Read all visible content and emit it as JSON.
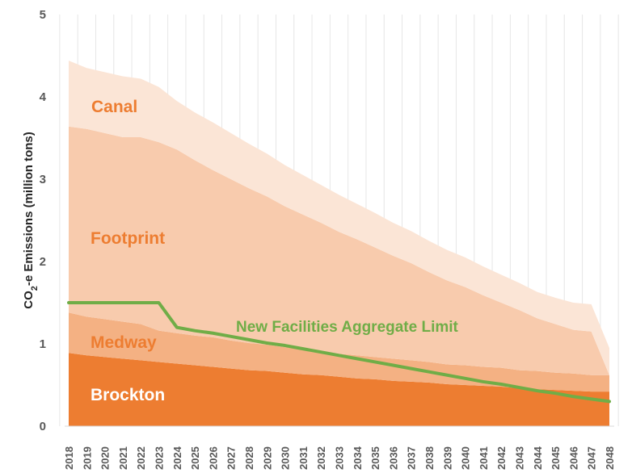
{
  "chart_data": {
    "type": "area",
    "stacked": true,
    "title": "",
    "xlabel": "",
    "ylabel": "CO2-e Emissions (million tons)",
    "ylabel_parts": {
      "pre": "CO",
      "sub": "2",
      "post": "-e Emissions (million tons)"
    },
    "ylim": [
      0,
      5
    ],
    "yticks": [
      "0",
      "1",
      "2",
      "3",
      "4",
      "5"
    ],
    "grid": "vertical",
    "categories": [
      "2018",
      "2019",
      "2020",
      "2021",
      "2022",
      "2023",
      "2024",
      "2025",
      "2026",
      "2027",
      "2028",
      "2029",
      "2030",
      "2031",
      "2032",
      "2033",
      "2034",
      "2035",
      "2036",
      "2037",
      "2038",
      "2039",
      "2040",
      "2041",
      "2042",
      "2043",
      "2044",
      "2045",
      "2046",
      "2047",
      "2048"
    ],
    "series": [
      {
        "name": "Brockton",
        "color": "#ED7D31",
        "label_color": "#FFFFFF",
        "values": [
          0.89,
          0.86,
          0.84,
          0.82,
          0.8,
          0.78,
          0.76,
          0.74,
          0.72,
          0.7,
          0.68,
          0.67,
          0.65,
          0.63,
          0.62,
          0.6,
          0.58,
          0.57,
          0.55,
          0.54,
          0.53,
          0.51,
          0.5,
          0.49,
          0.48,
          0.46,
          0.45,
          0.44,
          0.43,
          0.42,
          0.42
        ]
      },
      {
        "name": "Medway",
        "color": "#F4B183",
        "label_color": "#ED7D31",
        "values": [
          0.49,
          0.47,
          0.46,
          0.45,
          0.44,
          0.38,
          0.37,
          0.36,
          0.36,
          0.34,
          0.33,
          0.32,
          0.31,
          0.3,
          0.29,
          0.28,
          0.28,
          0.27,
          0.27,
          0.26,
          0.25,
          0.24,
          0.24,
          0.23,
          0.23,
          0.22,
          0.22,
          0.21,
          0.21,
          0.2,
          0.2
        ]
      },
      {
        "name": "Footprint",
        "color": "#F8CBAD",
        "label_color": "#ED7D31",
        "values": [
          2.26,
          2.28,
          2.26,
          2.24,
          2.27,
          2.29,
          2.23,
          2.13,
          2.03,
          1.96,
          1.88,
          1.8,
          1.71,
          1.64,
          1.56,
          1.48,
          1.41,
          1.33,
          1.25,
          1.18,
          1.09,
          1.02,
          0.95,
          0.87,
          0.79,
          0.73,
          0.64,
          0.59,
          0.53,
          0.53,
          0.0
        ]
      },
      {
        "name": "Canal",
        "color": "#FBE5D6",
        "label_color": "#ED7D31",
        "values": [
          0.8,
          0.74,
          0.74,
          0.74,
          0.71,
          0.67,
          0.59,
          0.58,
          0.58,
          0.56,
          0.54,
          0.52,
          0.5,
          0.48,
          0.46,
          0.45,
          0.43,
          0.42,
          0.4,
          0.39,
          0.38,
          0.37,
          0.36,
          0.35,
          0.34,
          0.33,
          0.32,
          0.32,
          0.33,
          0.33,
          0.33
        ]
      }
    ],
    "line": {
      "name": "New Facilities Aggregate Limit",
      "color": "#70AD47",
      "values": [
        1.5,
        1.5,
        1.5,
        1.5,
        1.5,
        1.5,
        1.2,
        1.16,
        1.13,
        1.09,
        1.05,
        1.01,
        0.98,
        0.94,
        0.9,
        0.86,
        0.82,
        0.78,
        0.74,
        0.7,
        0.66,
        0.62,
        0.58,
        0.54,
        0.51,
        0.47,
        0.43,
        0.4,
        0.36,
        0.33,
        0.3
      ]
    }
  }
}
